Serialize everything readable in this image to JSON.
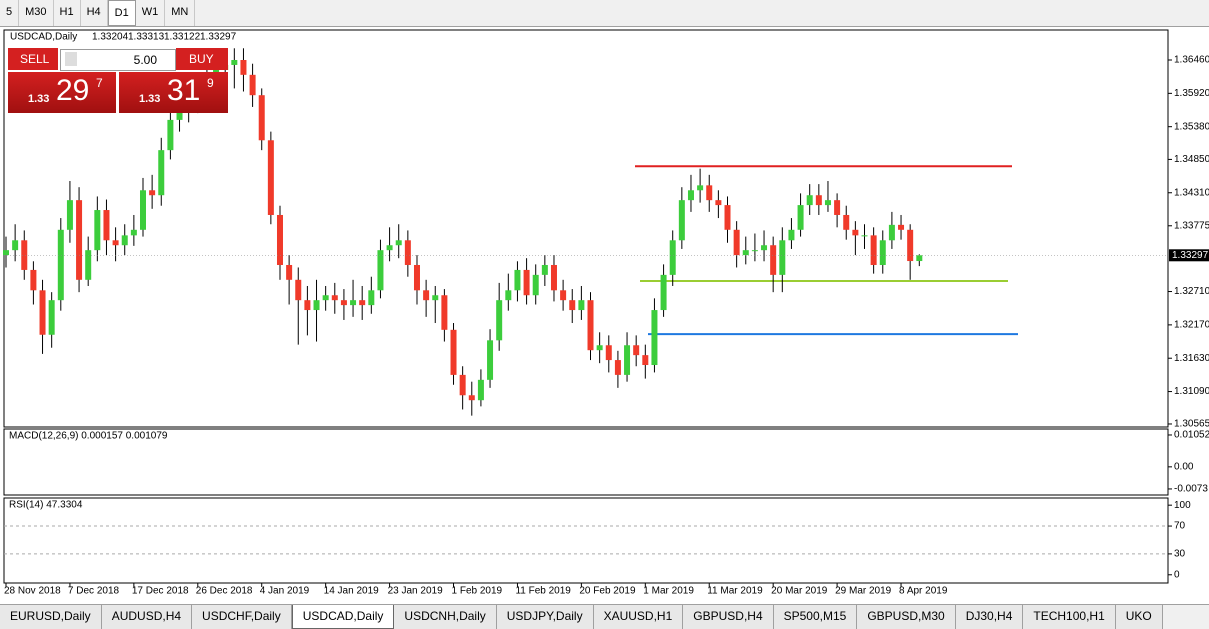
{
  "toolbar": {
    "timeframes": [
      "5",
      "M30",
      "H1",
      "H4",
      "D1",
      "W1",
      "MN"
    ],
    "active": "D1"
  },
  "chart_data": {
    "type": "candlestick",
    "title": "USDCAD,Daily",
    "categories": [
      "28 Nov 2018",
      null,
      null,
      null,
      null,
      null,
      null,
      "7 Dec 2018",
      null,
      null,
      null,
      null,
      null,
      null,
      "17 Dec 2018",
      null,
      null,
      null,
      null,
      null,
      null,
      "26 Dec 2018",
      null,
      null,
      null,
      null,
      null,
      null,
      "4 Jan 2019",
      null,
      null,
      null,
      null,
      null,
      null,
      "14 Jan 2019",
      null,
      null,
      null,
      null,
      null,
      null,
      "23 Jan 2019",
      null,
      null,
      null,
      null,
      null,
      null,
      "1 Feb 2019",
      null,
      null,
      null,
      null,
      null,
      null,
      "11 Feb 2019",
      null,
      null,
      null,
      null,
      null,
      null,
      "20 Feb 2019",
      null,
      null,
      null,
      null,
      null,
      null,
      "1 Mar 2019",
      null,
      null,
      null,
      null,
      null,
      null,
      "11 Mar 2019",
      null,
      null,
      null,
      null,
      null,
      null,
      "20 Mar 2019",
      null,
      null,
      null,
      null,
      null,
      null,
      "29 Mar 2019",
      null,
      null,
      null,
      null,
      null,
      null,
      "8 Apr 2019",
      null,
      null
    ],
    "open": [
      1.333,
      1.3338,
      1.3354,
      1.3306,
      1.3273,
      1.3201,
      1.3257,
      1.3371,
      1.3419,
      1.329,
      1.3338,
      1.3403,
      1.3354,
      1.3346,
      1.3362,
      1.3371,
      1.3435,
      1.3427,
      1.35,
      1.3549,
      1.3565,
      1.3581,
      1.3606,
      1.3622,
      1.363,
      1.3638,
      1.3646,
      1.3622,
      1.3589,
      1.3516,
      1.3395,
      1.3314,
      1.329,
      1.3257,
      1.3241,
      1.3257,
      1.3265,
      1.3257,
      1.3249,
      1.3257,
      1.3249,
      1.3273,
      1.3338,
      1.3346,
      1.3354,
      1.3314,
      1.3273,
      1.3257,
      1.3265,
      1.3209,
      1.3136,
      1.3103,
      1.3095,
      1.3128,
      1.3192,
      1.3257,
      1.3273,
      1.3306,
      1.3265,
      1.3298,
      1.3314,
      1.3273,
      1.3257,
      1.3241,
      1.3257,
      1.3176,
      1.3184,
      1.316,
      1.3136,
      1.3184,
      1.3168,
      1.3152,
      1.3241,
      1.3298,
      1.3354,
      1.3419,
      1.3435,
      1.3443,
      1.3419,
      1.3411,
      1.3371,
      1.333,
      1.3338,
      1.3338,
      1.3346,
      1.3298,
      1.3354,
      1.3371,
      1.3411,
      1.3427,
      1.3411,
      1.3419,
      1.3395,
      1.3371,
      1.3362,
      1.3362,
      1.3314,
      1.3354,
      1.3379,
      1.3371,
      1.33204
    ],
    "high": [
      1.336,
      1.338,
      1.337,
      1.332,
      1.329,
      1.327,
      1.339,
      1.345,
      1.344,
      1.336,
      1.3425,
      1.342,
      1.3375,
      1.338,
      1.3395,
      1.3455,
      1.346,
      1.352,
      1.357,
      1.359,
      1.36,
      1.3625,
      1.3645,
      1.365,
      1.366,
      1.3665,
      1.3665,
      1.364,
      1.36,
      1.353,
      1.341,
      1.333,
      1.331,
      1.328,
      1.329,
      1.328,
      1.3285,
      1.3275,
      1.329,
      1.328,
      1.3295,
      1.3355,
      1.3375,
      1.338,
      1.337,
      1.333,
      1.329,
      1.328,
      1.3275,
      1.322,
      1.315,
      1.3125,
      1.3145,
      1.321,
      1.3285,
      1.33,
      1.332,
      1.3325,
      1.3315,
      1.333,
      1.333,
      1.329,
      1.3275,
      1.328,
      1.327,
      1.3205,
      1.32,
      1.3175,
      1.3205,
      1.32,
      1.3185,
      1.326,
      1.3315,
      1.337,
      1.344,
      1.346,
      1.347,
      1.346,
      1.3435,
      1.3425,
      1.3385,
      1.336,
      1.3365,
      1.337,
      1.336,
      1.3375,
      1.339,
      1.343,
      1.3445,
      1.3445,
      1.345,
      1.343,
      1.341,
      1.3385,
      1.338,
      1.3375,
      1.337,
      1.34,
      1.3395,
      1.338,
      1.33313
    ],
    "low": [
      1.331,
      1.332,
      1.329,
      1.325,
      1.317,
      1.318,
      1.324,
      1.335,
      1.327,
      1.328,
      1.332,
      1.333,
      1.332,
      1.333,
      1.3345,
      1.336,
      1.3405,
      1.341,
      1.3485,
      1.353,
      1.3545,
      1.356,
      1.359,
      1.36,
      1.361,
      1.36,
      1.3595,
      1.357,
      1.35,
      1.338,
      1.329,
      1.325,
      1.3185,
      1.32,
      1.319,
      1.324,
      1.3235,
      1.3225,
      1.323,
      1.3225,
      1.3235,
      1.326,
      1.332,
      1.3325,
      1.3295,
      1.325,
      1.323,
      1.322,
      1.319,
      1.312,
      1.308,
      1.307,
      1.3085,
      1.3115,
      1.3175,
      1.324,
      1.3255,
      1.325,
      1.325,
      1.328,
      1.3255,
      1.324,
      1.322,
      1.3225,
      1.316,
      1.3155,
      1.314,
      1.3115,
      1.3125,
      1.315,
      1.313,
      1.314,
      1.323,
      1.328,
      1.334,
      1.34,
      1.3415,
      1.34,
      1.339,
      1.335,
      1.331,
      1.3315,
      1.332,
      1.332,
      1.327,
      1.327,
      1.334,
      1.336,
      1.3395,
      1.3395,
      1.34,
      1.3375,
      1.3355,
      1.333,
      1.334,
      1.33,
      1.33,
      1.334,
      1.3355,
      1.329,
      1.33122
    ],
    "close": [
      1.3338,
      1.3354,
      1.3306,
      1.3273,
      1.3201,
      1.3257,
      1.3371,
      1.3419,
      1.329,
      1.3338,
      1.3403,
      1.3354,
      1.3346,
      1.3362,
      1.3371,
      1.3435,
      1.3427,
      1.35,
      1.3549,
      1.3565,
      1.3581,
      1.3606,
      1.3622,
      1.363,
      1.3638,
      1.3646,
      1.3622,
      1.3589,
      1.3516,
      1.3395,
      1.3314,
      1.329,
      1.3257,
      1.3241,
      1.3257,
      1.3265,
      1.3257,
      1.3249,
      1.3257,
      1.3249,
      1.3273,
      1.3338,
      1.3346,
      1.3354,
      1.3314,
      1.3273,
      1.3257,
      1.3265,
      1.3209,
      1.3136,
      1.3103,
      1.3095,
      1.3128,
      1.3192,
      1.3257,
      1.3273,
      1.3306,
      1.3265,
      1.3298,
      1.3314,
      1.3273,
      1.3257,
      1.3241,
      1.3257,
      1.3176,
      1.3184,
      1.316,
      1.3136,
      1.3184,
      1.3168,
      1.3152,
      1.3241,
      1.3298,
      1.3354,
      1.3419,
      1.3435,
      1.3443,
      1.3419,
      1.3411,
      1.3371,
      1.333,
      1.3338,
      1.3338,
      1.3346,
      1.3298,
      1.3354,
      1.3371,
      1.3411,
      1.3427,
      1.3411,
      1.3419,
      1.3395,
      1.3371,
      1.3362,
      1.3362,
      1.3314,
      1.3354,
      1.3379,
      1.3371,
      1.33204,
      1.33297
    ],
    "up_color": "#3ccd3c",
    "down_color": "#f03a2a",
    "ylim": [
      1.30516,
      1.36946
    ],
    "yticks": [
      {
        "value": 1.3646,
        "label": "1.36460"
      },
      {
        "value": 1.3592,
        "label": "1.35920"
      },
      {
        "value": 1.3538,
        "label": "1.35380"
      },
      {
        "value": 1.3485,
        "label": "1.34850"
      },
      {
        "value": 1.3431,
        "label": "1.34310"
      },
      1.33775,
      {
        "value": 1.3271,
        "label": "1.32710"
      },
      {
        "value": 1.3217,
        "label": "1.32170"
      },
      {
        "value": 1.3163,
        "label": "1.31630"
      },
      {
        "value": 1.3109,
        "label": "1.31090"
      },
      1.30565
    ],
    "current_price": 1.33297,
    "hlines": [
      {
        "value": 1.3474,
        "color": "#e02020"
      },
      {
        "value": 1.3288,
        "color": "#9acd32"
      },
      {
        "value": 1.3202,
        "color": "#1e78e0"
      }
    ],
    "indicators": [
      {
        "title": "MACD(12,26,9) 0.000157 0.001079",
        "ylim": [
          -0.0093,
          0.0125
        ],
        "yticks": [
          0.010525,
          {
            "value": 0,
            "label": "0.00"
          },
          -0.0073
        ]
      },
      {
        "title": "RSI(14) 47.3304",
        "ylim": [
          -11.8,
          110.3
        ],
        "yticks": [
          100,
          70,
          30,
          0
        ]
      }
    ]
  },
  "trade_panel": {
    "sell": "SELL",
    "buy": "BUY",
    "lot": "5.00",
    "bid": [
      "1.33",
      "29",
      "7"
    ],
    "ask": [
      "1.33",
      "31",
      "9"
    ]
  },
  "symbol_tabs": [
    "EURUSD,Daily",
    "AUDUSD,H4",
    "USDCHF,Daily",
    "USDCAD,Daily",
    "USDCNH,Daily",
    "USDJPY,Daily",
    "XAUUSD,H1",
    "GBPUSD,H4",
    "SP500,M15",
    "GBPUSD,M30",
    "DJ30,H4",
    "TECH100,H1",
    "UKO"
  ],
  "active_tab": "USDCAD,Daily"
}
